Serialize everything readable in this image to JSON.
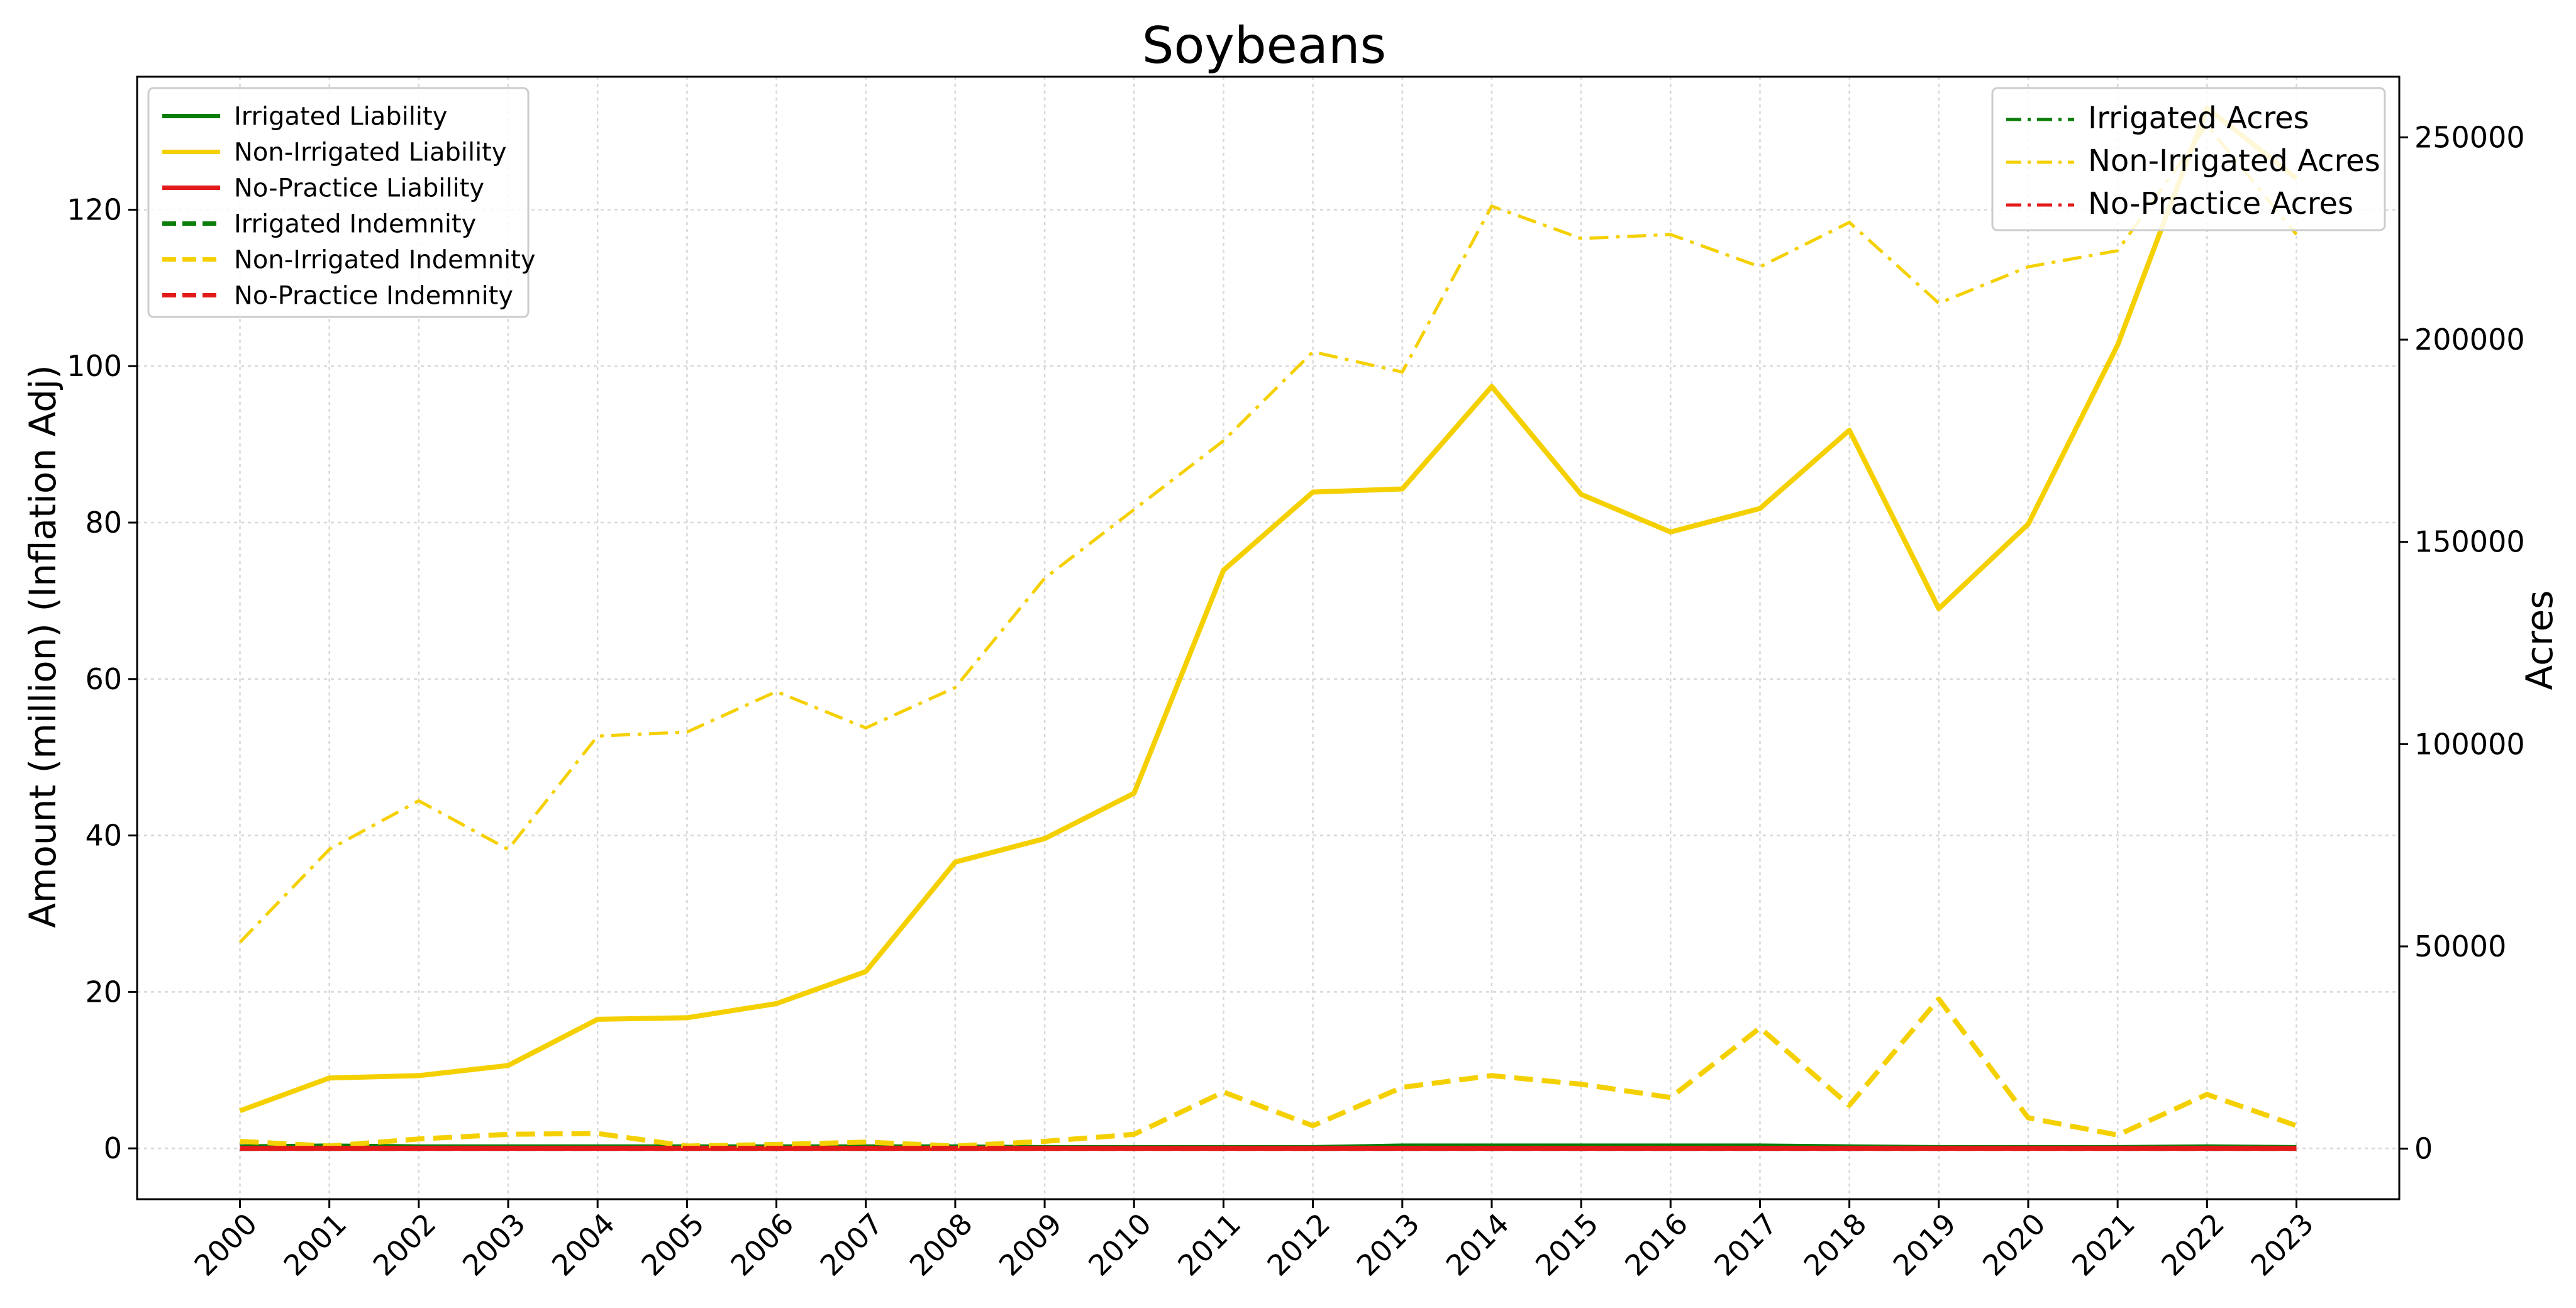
{
  "chart_data": {
    "type": "line",
    "title": "Soybeans",
    "ylabel": "Amount (million) (Inflation Adj)",
    "y2label": "Acres",
    "xlabel": "",
    "x": [
      2000,
      2001,
      2002,
      2003,
      2004,
      2005,
      2006,
      2007,
      2008,
      2009,
      2010,
      2011,
      2012,
      2013,
      2014,
      2015,
      2016,
      2017,
      2018,
      2019,
      2020,
      2021,
      2022,
      2023
    ],
    "xlim": [
      1998.85,
      2024.15
    ],
    "ylim": [
      -6.5,
      137
    ],
    "y2lim": [
      -12500,
      265000
    ],
    "yticks": [
      0,
      20,
      40,
      60,
      80,
      100,
      120
    ],
    "y2ticks": [
      0,
      50000,
      100000,
      150000,
      200000,
      250000
    ],
    "grid": true,
    "colors": {
      "irrigated": "#0a7d0a",
      "non_irrigated": "#f5d000",
      "no_practice": "#e31a1a"
    },
    "series": [
      {
        "name": "Irrigated Liability",
        "axis": "left",
        "style": "solid",
        "color": "#0a7d0a",
        "values": [
          0.2,
          0.3,
          0.2,
          0.2,
          0.2,
          0.2,
          0.2,
          0.2,
          0.2,
          0.1,
          0.1,
          0.1,
          0.1,
          0.3,
          0.3,
          0.3,
          0.3,
          0.3,
          0.2,
          0.1,
          0.1,
          0.1,
          0.2,
          0.1
        ]
      },
      {
        "name": "Non-Irrigated Liability",
        "axis": "left",
        "style": "solid",
        "color": "#f5d000",
        "values": [
          4.8,
          9.0,
          9.3,
          10.6,
          16.5,
          16.7,
          18.5,
          22.6,
          36.6,
          39.6,
          45.4,
          73.9,
          83.9,
          84.3,
          97.4,
          83.6,
          78.8,
          81.8,
          91.8,
          69.0,
          79.8,
          102.7,
          133.0,
          124.0
        ]
      },
      {
        "name": "No-Practice Liability",
        "axis": "left",
        "style": "solid",
        "color": "#e31a1a",
        "values": [
          0,
          0,
          0,
          0,
          0,
          0,
          0,
          0,
          0,
          0,
          0,
          0,
          0,
          0,
          0,
          0,
          0,
          0,
          0,
          0,
          0,
          0,
          0,
          0
        ]
      },
      {
        "name": "Irrigated Indemnity",
        "axis": "left",
        "style": "dashed",
        "color": "#0a7d0a",
        "values": [
          0,
          0,
          0,
          0,
          0,
          0,
          0,
          0,
          0,
          0,
          0,
          0,
          0,
          0,
          0,
          0,
          0,
          0,
          0,
          0,
          0,
          0,
          0,
          0
        ]
      },
      {
        "name": "Non-Irrigated Indemnity",
        "axis": "left",
        "style": "dashed",
        "color": "#f5d000",
        "values": [
          0.9,
          0.3,
          1.2,
          1.8,
          1.9,
          0.3,
          0.5,
          0.8,
          0.3,
          0.9,
          1.8,
          7.2,
          2.9,
          7.8,
          9.3,
          8.2,
          6.5,
          15.4,
          5.5,
          19.1,
          3.9,
          1.7,
          6.9,
          2.9
        ]
      },
      {
        "name": "No-Practice Indemnity",
        "axis": "left",
        "style": "dashed",
        "color": "#e31a1a",
        "values": [
          0,
          0,
          0,
          0,
          0,
          0,
          0,
          0,
          0,
          0,
          0,
          0,
          0,
          0,
          0,
          0,
          0,
          0,
          0,
          0,
          0,
          0,
          0,
          0
        ]
      },
      {
        "name": "Irrigated Acres",
        "axis": "right",
        "style": "dashdot",
        "color": "#0a7d0a",
        "values": [
          200,
          180,
          160,
          150,
          170,
          150,
          150,
          150,
          130,
          130,
          130,
          120,
          120,
          150,
          100,
          100,
          100,
          100,
          100,
          100,
          100,
          80,
          100,
          80
        ]
      },
      {
        "name": "Non-Irrigated Acres",
        "axis": "right",
        "style": "dashdot",
        "color": "#f5d000",
        "values": [
          51000,
          74000,
          86000,
          74000,
          102000,
          103000,
          113000,
          104000,
          114000,
          141000,
          158000,
          175000,
          197000,
          192000,
          233000,
          225000,
          226000,
          218000,
          229000,
          209000,
          218000,
          222000,
          253000,
          226000
        ]
      },
      {
        "name": "No-Practice Acres",
        "axis": "right",
        "style": "dashdot",
        "color": "#e31a1a",
        "values": [
          0,
          0,
          0,
          0,
          0,
          0,
          0,
          0,
          0,
          0,
          0,
          0,
          0,
          0,
          0,
          0,
          0,
          0,
          0,
          0,
          0,
          0,
          0,
          0
        ]
      }
    ],
    "legend_left": {
      "placement": "top-left",
      "entries": [
        "Irrigated Liability",
        "Non-Irrigated Liability",
        "No-Practice Liability",
        "Irrigated Indemnity",
        "Non-Irrigated Indemnity",
        "No-Practice Indemnity"
      ]
    },
    "legend_right": {
      "placement": "top-right",
      "entries": [
        "Irrigated Acres",
        "Non-Irrigated Acres",
        "No-Practice Acres"
      ]
    }
  }
}
